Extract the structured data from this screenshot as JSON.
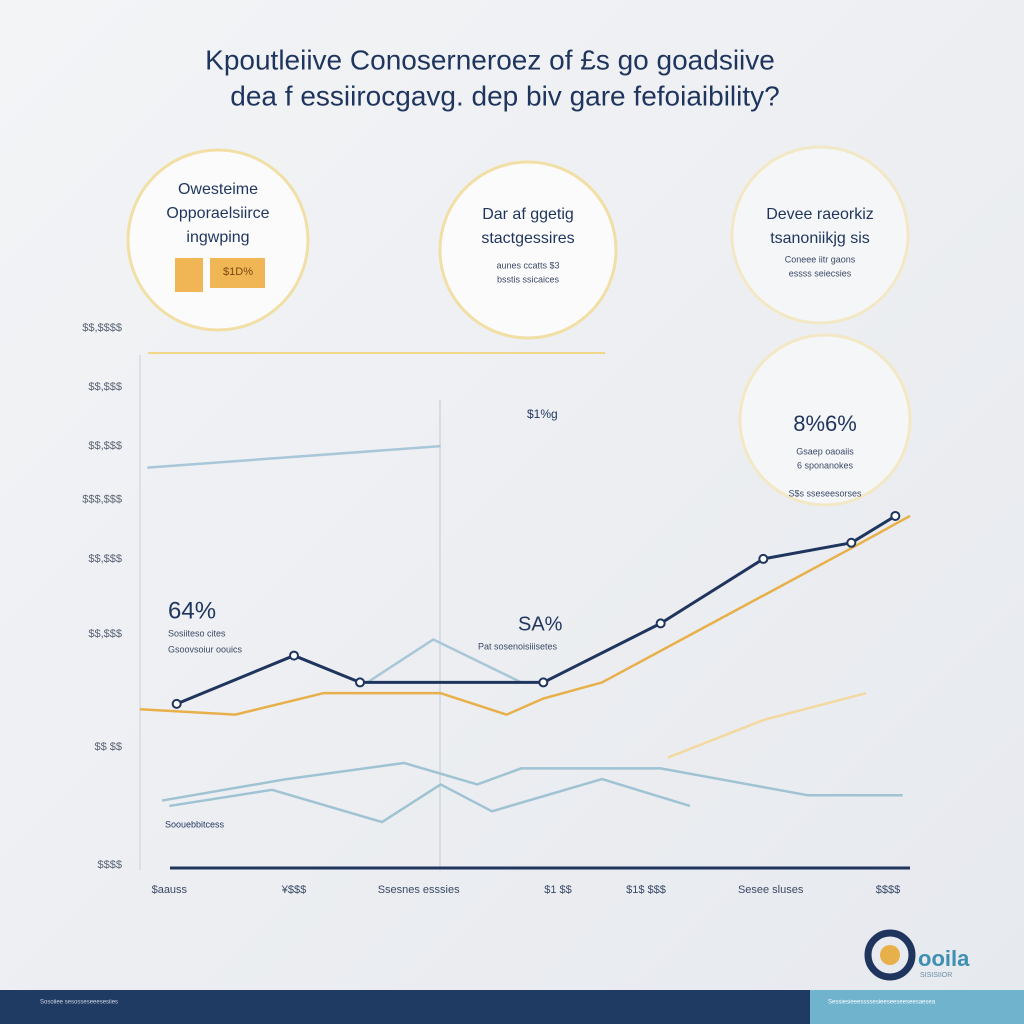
{
  "title_lines": [
    "Kpoutleiive Conoserneroez of £s go goadsiive",
    "dea f essiirocgavg. dep biv gare fefoiaibility?"
  ],
  "cards": [
    {
      "lines": [
        "Owesteime",
        "Opporaelsiirce",
        "ingwping"
      ],
      "badge": "$1D%"
    },
    {
      "lines": [
        "Dar af ggetig",
        "stactgessires"
      ],
      "notes": [
        "aunes ccatts $3",
        "bsstis ssicaices"
      ]
    },
    {
      "lines": [
        "Devee raeorkiz",
        "tsanoniikjg sis"
      ],
      "notes": [
        "Coneee iitr gaons",
        "essss seiecsies"
      ]
    },
    {
      "lines": [
        "8%6%"
      ],
      "notes": [
        "Gsaep oaoaiis",
        "6 sponanokes",
        "S$s sseseesorses"
      ]
    }
  ],
  "chart_data": {
    "type": "line",
    "xlim": [
      0,
      105
    ],
    "ylim": [
      0,
      100
    ],
    "xticks": [
      {
        "value": 4,
        "label": "$aauss"
      },
      {
        "value": 21,
        "label": "¥$$$"
      },
      {
        "value": 38,
        "label": "Ssesnes esssies"
      },
      {
        "value": 57,
        "label": "$1 $$"
      },
      {
        "value": 69,
        "label": "$1$ $$$"
      },
      {
        "value": 86,
        "label": "Sesee sluses"
      },
      {
        "value": 102,
        "label": "$$$$"
      }
    ],
    "yticks": [
      {
        "value": 0,
        "label": "$$$$"
      },
      {
        "value": 22,
        "label": "$$ $$"
      },
      {
        "value": 43,
        "label": "$$,$$$"
      },
      {
        "value": 57,
        "label": "$$,$$$"
      },
      {
        "value": 68,
        "label": "$$$,$$$"
      },
      {
        "value": 78,
        "label": "$$,$$$"
      },
      {
        "value": 89,
        "label": "$$,$$$"
      },
      {
        "value": 100,
        "label": "$$,$$$$"
      }
    ],
    "series": [
      {
        "color": "#a9c7d8",
        "x": [
          1,
          41
        ],
        "values": [
          74,
          78
        ]
      },
      {
        "color": "#a9c7d8",
        "x": [
          31,
          40,
          52
        ],
        "values": [
          34,
          42,
          34
        ]
      },
      {
        "color": "#9fc3d3",
        "x": [
          3,
          20,
          36,
          46,
          52,
          71,
          83,
          91,
          104
        ],
        "values": [
          12,
          16,
          19,
          15,
          18,
          18,
          15,
          13,
          13
        ]
      },
      {
        "color": "#9fc3d3",
        "x": [
          4,
          18,
          33,
          41,
          48,
          63,
          75
        ],
        "values": [
          11,
          14,
          8,
          15,
          10,
          16,
          11
        ]
      },
      {
        "color": "#f3d9a0",
        "x": [
          72,
          85,
          99
        ],
        "values": [
          20,
          27,
          32
        ]
      },
      {
        "color": "#e8b04a",
        "x": [
          0,
          13,
          25,
          41,
          50,
          55,
          63,
          97,
          105
        ],
        "values": [
          29,
          28,
          32,
          32,
          28,
          31,
          34,
          59,
          65
        ]
      },
      {
        "color": "#1f355e",
        "x": [
          5,
          21,
          30,
          55,
          71,
          85,
          97,
          103
        ],
        "values": [
          30,
          39,
          34,
          34,
          45,
          57,
          60,
          65
        ]
      }
    ],
    "annotations": [
      {
        "text": "64%",
        "notes": [
          "Sosiiteso cites",
          "Gsoovsoiur oouics"
        ]
      },
      {
        "text": "SA%",
        "notes": [
          "Pat sosenoisiiisetes"
        ]
      },
      {
        "text": "$1%g"
      },
      {
        "text": "Soouebbitcess"
      }
    ]
  },
  "logo": {
    "name": "ooila",
    "tagline": "SISISIIOR"
  },
  "footer": {
    "left": "Sosoiiee sesosseseeesesiies",
    "right": "Sessiesieeessssesieeseeseeseesaesea"
  }
}
